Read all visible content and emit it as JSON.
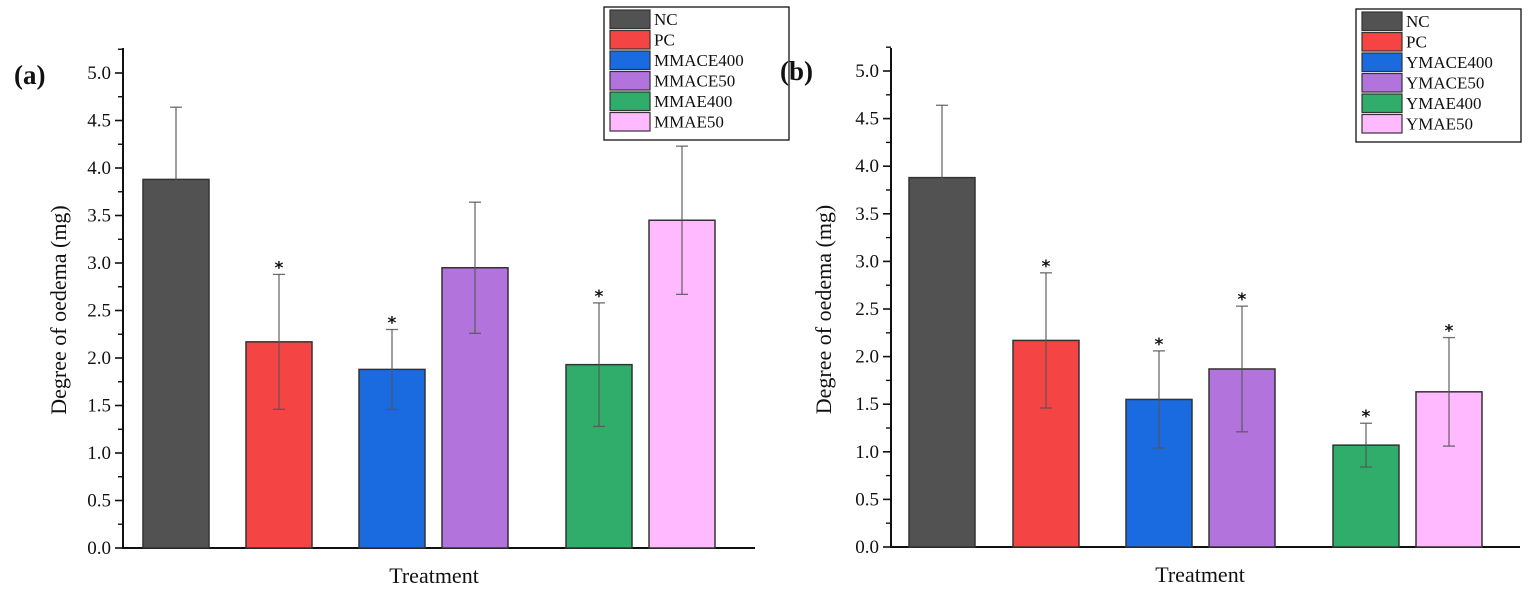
{
  "chart_data": [
    {
      "type": "bar",
      "panel_label": "(a)",
      "title": "",
      "xlabel": "Treatment",
      "ylabel": "Degree of oedema (mg)",
      "ylim": [
        0,
        5.25
      ],
      "yticks": [
        "0.0",
        "0.5",
        "1.0",
        "1.5",
        "2.0",
        "2.5",
        "3.0",
        "3.5",
        "4.0",
        "4.5",
        "5.0"
      ],
      "grid": false,
      "legend_position": "top-right",
      "categories": [
        "NC",
        "PC",
        "MMACE400",
        "MMACE50",
        "MMAE400",
        "MMAE50"
      ],
      "colors": [
        "#525252",
        "#f44444",
        "#1a6be0",
        "#b373dc",
        "#31ad6b",
        "#ffb9ff"
      ],
      "values": [
        3.88,
        2.17,
        1.88,
        2.95,
        1.93,
        3.45
      ],
      "errors": [
        0.76,
        0.71,
        0.42,
        0.69,
        0.65,
        0.78
      ],
      "significant": [
        false,
        true,
        true,
        false,
        true,
        false
      ],
      "annotation_symbol": "*"
    },
    {
      "type": "bar",
      "panel_label": "(b)",
      "title": "",
      "xlabel": "Treatment",
      "ylabel": "Degree of oedema (mg)",
      "ylim": [
        0,
        5.25
      ],
      "yticks": [
        "0.0",
        "0.5",
        "1.0",
        "1.5",
        "2.0",
        "2.5",
        "3.0",
        "3.5",
        "4.0",
        "4.5",
        "5.0"
      ],
      "grid": false,
      "legend_position": "top-right",
      "categories": [
        "NC",
        "PC",
        "YMACE400",
        "YMACE50",
        "YMAE400",
        "YMAE50"
      ],
      "colors": [
        "#525252",
        "#f44444",
        "#1a6be0",
        "#b373dc",
        "#31ad6b",
        "#ffb9ff"
      ],
      "values": [
        3.88,
        2.17,
        1.55,
        1.87,
        1.07,
        1.63
      ],
      "errors": [
        0.76,
        0.71,
        0.51,
        0.66,
        0.23,
        0.57
      ],
      "significant": [
        false,
        true,
        true,
        true,
        true,
        true
      ],
      "annotation_symbol": "*"
    }
  ]
}
